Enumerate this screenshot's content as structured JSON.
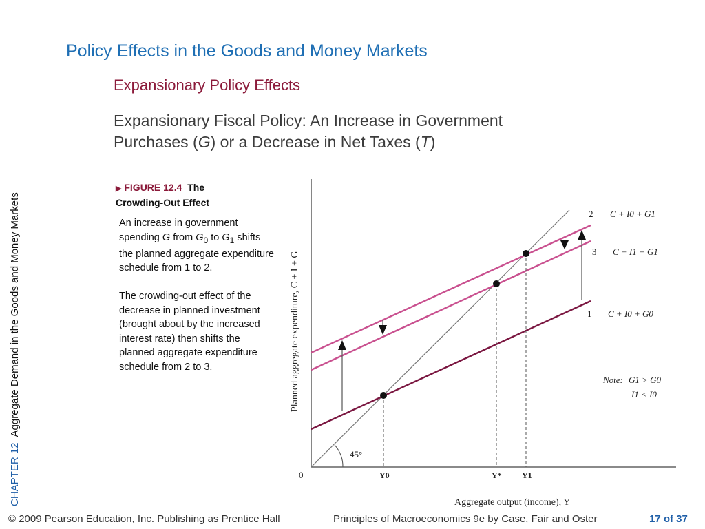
{
  "side_label": {
    "chapter": "CHAPTER 12",
    "title": "Aggregate Demand in the Goods and Money Markets"
  },
  "title": "Policy Effects in the Goods and Money Markets",
  "subtitle": "Expansionary Policy Effects",
  "heading": {
    "line1": "Expansionary Fiscal Policy: An Increase in Government",
    "line2_a": "Purchases (",
    "line2_g": "G",
    "line2_b": ") or a Decrease in Net Taxes (",
    "line2_t": "T",
    "line2_c": ")"
  },
  "figure": {
    "marker": "▶",
    "number": "FIGURE 12.4",
    "title": "The Crowding-Out Effect"
  },
  "caption1": {
    "a": "An increase in government spending ",
    "g": "G",
    "b": " from ",
    "g0": "G",
    "s0": "0",
    "c": " to ",
    "g1": "G",
    "s1": "1",
    "d": " shifts the planned aggregate expenditure schedule from 1 to 2."
  },
  "caption2": "The crowding-out effect of the decrease in planned investment (brought about by the increased interest rate) then shifts the planned aggregate expenditure schedule from 2 to 3.",
  "diagram": {
    "y_axis_label": "Planned aggregate expenditure, C + I + G",
    "x_axis_label": "Aggregate output (income), Y",
    "origin": "0",
    "angle_label": "45°",
    "x_ticks": [
      "Y0",
      "Y*",
      "Y1"
    ],
    "lines": [
      {
        "number": "2",
        "label": "C + I0 + G1"
      },
      {
        "number": "3",
        "label": "C + I1 + G1"
      },
      {
        "number": "1",
        "label": "C + I0 + G0"
      }
    ],
    "note": {
      "prefix": "Note:",
      "line1": "G1 > G0",
      "line2": "I1 < I0"
    },
    "colors": {
      "pink": "#c9508f",
      "dark": "#7a1640",
      "axis": "#444444"
    }
  },
  "footer": {
    "copyright": "© 2009 Pearson Education, Inc. Publishing as Prentice Hall",
    "book": "Principles of Macroeconomics 9e by Case, Fair and Oster",
    "page": "17 of 37"
  }
}
